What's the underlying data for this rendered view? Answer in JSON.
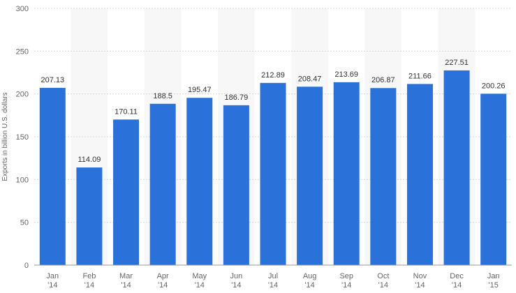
{
  "chart_data": {
    "type": "bar",
    "title": "",
    "xlabel": "",
    "ylabel": "Exports in billion U.S. dollars",
    "ylim": [
      0,
      300
    ],
    "yticks": [
      0,
      50,
      100,
      150,
      200,
      250,
      300
    ],
    "grid": true,
    "legend": "none",
    "bar_color": "#2a72d9",
    "band_color": "#f7f7f7",
    "categories": [
      [
        "Jan",
        "'14"
      ],
      [
        "Feb",
        "'14"
      ],
      [
        "Mar",
        "'14"
      ],
      [
        "Apr",
        "'14"
      ],
      [
        "May",
        "'14"
      ],
      [
        "Jun",
        "'14"
      ],
      [
        "Jul",
        "'14"
      ],
      [
        "Aug",
        "'14"
      ],
      [
        "Sep",
        "'14"
      ],
      [
        "Oct",
        "'14"
      ],
      [
        "Nov",
        "'14"
      ],
      [
        "Dec",
        "'14"
      ],
      [
        "Jan",
        "'15"
      ]
    ],
    "values": [
      207.13,
      114.09,
      170.11,
      188.5,
      195.47,
      186.79,
      212.89,
      208.47,
      213.69,
      206.87,
      211.66,
      227.51,
      200.26
    ],
    "value_labels": [
      "207.13",
      "114.09",
      "170.11",
      "188.5",
      "195.47",
      "186.79",
      "212.89",
      "208.47",
      "213.69",
      "206.87",
      "211.66",
      "227.51",
      "200.26"
    ]
  }
}
